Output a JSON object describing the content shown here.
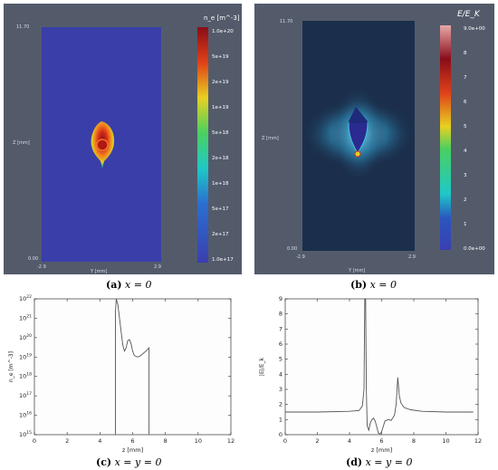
{
  "captions": {
    "a": {
      "tag": "(a)",
      "text": "x = 0"
    },
    "b": {
      "tag": "(b)",
      "text": "x = 0"
    },
    "c": {
      "tag": "(c)",
      "text": "x = y = 0"
    },
    "d": {
      "tag": "(d)",
      "text": "x = y = 0"
    }
  },
  "colors": {
    "frame_bg": "#535b6b",
    "plasma_bg": "#3a3ea8",
    "field_bg": "#1b2f4c",
    "curve": "#555555"
  },
  "chart_data": [
    {
      "type": "heatmap",
      "panel": "a",
      "title": "n_e [m^-3]",
      "ylabel": "Z [mm]",
      "xlabel": "Y [mm]",
      "y_top_label": "11.70",
      "y_bottom_label": "0.00",
      "x_left_label": "-2.9",
      "x_right_label": "2.9",
      "colorbar_ticks": [
        "1.0e+20",
        "5e+19",
        "2e+19",
        "1e+19",
        "5e+18",
        "2e+18",
        "1e+18",
        "5e+17",
        "2e+17",
        "1.0e+17"
      ],
      "colorbar_scale": "log"
    },
    {
      "type": "heatmap",
      "panel": "b",
      "title": "E/E_K",
      "ylabel": "Z [mm]",
      "xlabel": "Y [mm]",
      "y_top_label": "11.70",
      "y_bottom_label": "0.00",
      "x_left_label": "-2.9",
      "x_right_label": "2.9",
      "colorbar_ticks": [
        "9.0e+00",
        "8",
        "7",
        "6",
        "5",
        "4",
        "3",
        "2",
        "1",
        "0.0e+00"
      ],
      "colorbar_scale": "linear"
    },
    {
      "type": "line",
      "panel": "c",
      "xlabel": "z [mm]",
      "ylabel": "n_e [m^-3]",
      "xlim": [
        0,
        12
      ],
      "ylim": [
        1000000000000000.0,
        1e+22
      ],
      "yscale": "log",
      "xticks": [
        "0",
        "2",
        "4",
        "6",
        "8",
        "10",
        "12"
      ],
      "yticks": [
        "10^15",
        "10^16",
        "10^17",
        "10^18",
        "10^19",
        "10^20",
        "10^21",
        "10^22"
      ],
      "x": [
        4.95,
        4.95,
        5.0,
        5.1,
        5.2,
        5.3,
        5.4,
        5.5,
        5.6,
        5.7,
        5.8,
        5.9,
        6.0,
        6.1,
        6.3,
        6.5,
        6.8,
        7.0,
        7.0
      ],
      "y": [
        1000000000000000.0,
        2e+21,
        1e+22,
        5e+21,
        1e+21,
        2e+20,
        4e+19,
        2e+19,
        3e+19,
        7e+19,
        8e+19,
        5e+19,
        2e+19,
        1.2e+19,
        1e+19,
        1.2e+19,
        2e+19,
        3e+19,
        1000000000000000.0
      ]
    },
    {
      "type": "line",
      "panel": "d",
      "xlabel": "z [mm]",
      "ylabel": "|E|/E_k",
      "xlim": [
        0,
        12
      ],
      "ylim": [
        0,
        9
      ],
      "xticks": [
        "0",
        "2",
        "4",
        "6",
        "8",
        "10",
        "12"
      ],
      "yticks": [
        "0",
        "1",
        "2",
        "3",
        "4",
        "5",
        "6",
        "7",
        "8",
        "9"
      ],
      "x": [
        0,
        2,
        4,
        4.6,
        4.8,
        4.9,
        4.95,
        5.0,
        5.05,
        5.1,
        5.2,
        5.3,
        5.4,
        5.5,
        5.6,
        5.7,
        5.8,
        5.9,
        6.0,
        6.2,
        6.4,
        6.6,
        6.8,
        6.9,
        7.0,
        7.1,
        7.2,
        7.4,
        7.8,
        8.5,
        10,
        11.7
      ],
      "y": [
        1.5,
        1.5,
        1.55,
        1.6,
        1.9,
        3,
        9,
        9,
        3,
        0.6,
        0.3,
        0.8,
        1.0,
        1.1,
        0.9,
        0.5,
        0.1,
        0.05,
        0.2,
        0.9,
        1.0,
        0.95,
        1.3,
        2.0,
        3.8,
        2.6,
        2.1,
        1.8,
        1.65,
        1.55,
        1.5,
        1.5
      ]
    }
  ]
}
